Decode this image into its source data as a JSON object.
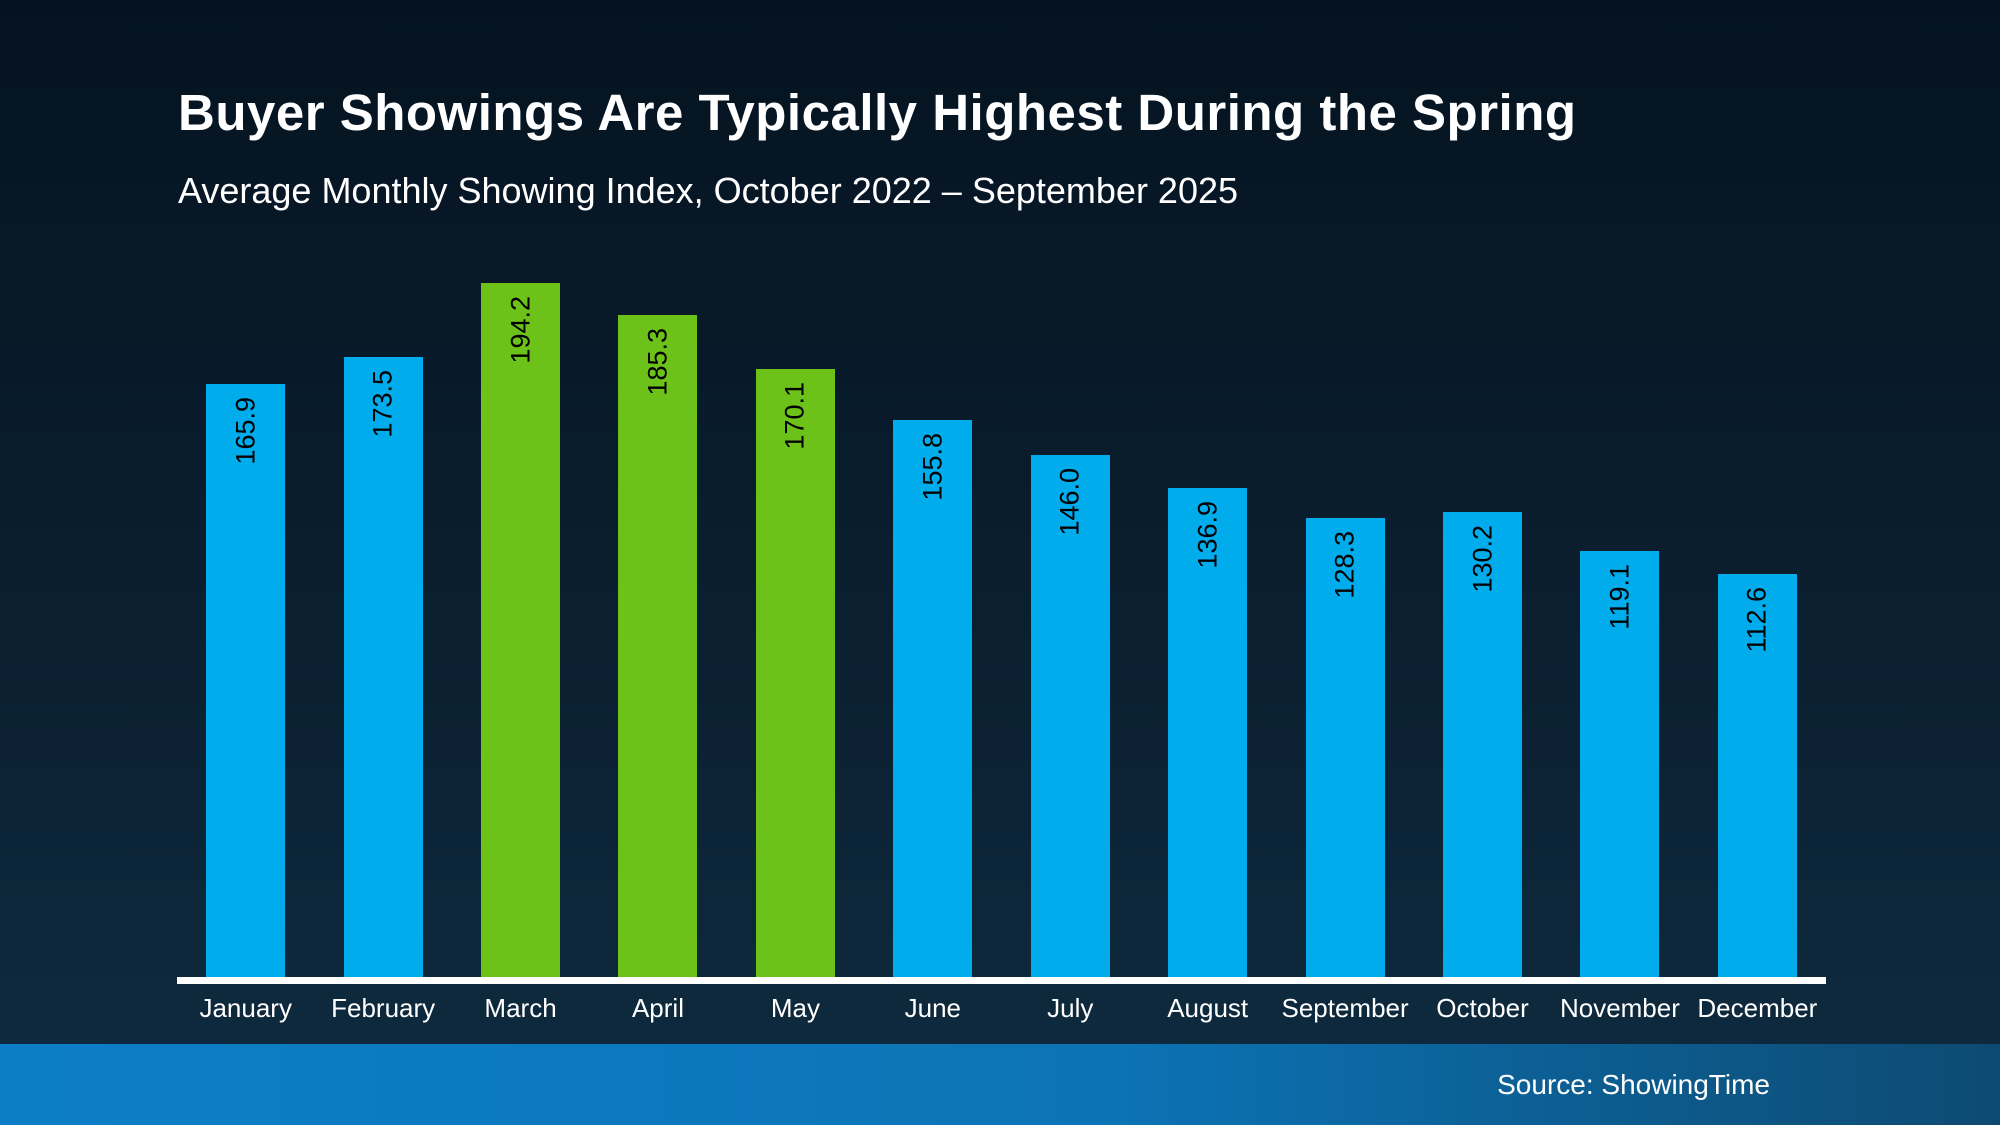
{
  "header": {
    "title": "Buyer Showings Are Typically Highest During the Spring",
    "subtitle": "Average Monthly Showing Index, October 2022 – September 2025"
  },
  "footer": {
    "source": "Source: ShowingTime"
  },
  "colors": {
    "background_top": "#051320",
    "background_bottom": "#0f2b40",
    "bar_blue": "#00ACEC",
    "bar_green": "#6CC218",
    "axis_white": "#ffffff",
    "footer_left": "#0c7ec7",
    "footer_right": "#0d4a72",
    "value_label": "#000000",
    "text": "#ffffff"
  },
  "chart_data": {
    "type": "bar",
    "title": "Buyer Showings Are Typically Highest During the Spring",
    "subtitle": "Average Monthly Showing Index, October 2022 – September 2025",
    "categories": [
      "January",
      "February",
      "March",
      "April",
      "May",
      "June",
      "July",
      "August",
      "September",
      "October",
      "November",
      "December"
    ],
    "values": [
      165.9,
      173.5,
      194.2,
      185.3,
      170.1,
      155.8,
      146.0,
      136.9,
      128.3,
      130.2,
      119.1,
      112.6
    ],
    "value_labels": [
      "165.9",
      "173.5",
      "194.2",
      "185.3",
      "170.1",
      "155.8",
      "146.0",
      "136.9",
      "128.3",
      "130.2",
      "119.1",
      "112.6"
    ],
    "highlighted_categories": [
      "March",
      "April",
      "May"
    ],
    "bar_color": "#00ACEC",
    "highlight_color": "#6CC218",
    "value_label_rotation": -90,
    "value_label_position": "inside-top",
    "xlabel": "",
    "ylabel": "",
    "ylim": [
      0,
      200
    ],
    "grid": false,
    "legend": false,
    "x_axis_line": true,
    "y_axis_labels": false
  }
}
